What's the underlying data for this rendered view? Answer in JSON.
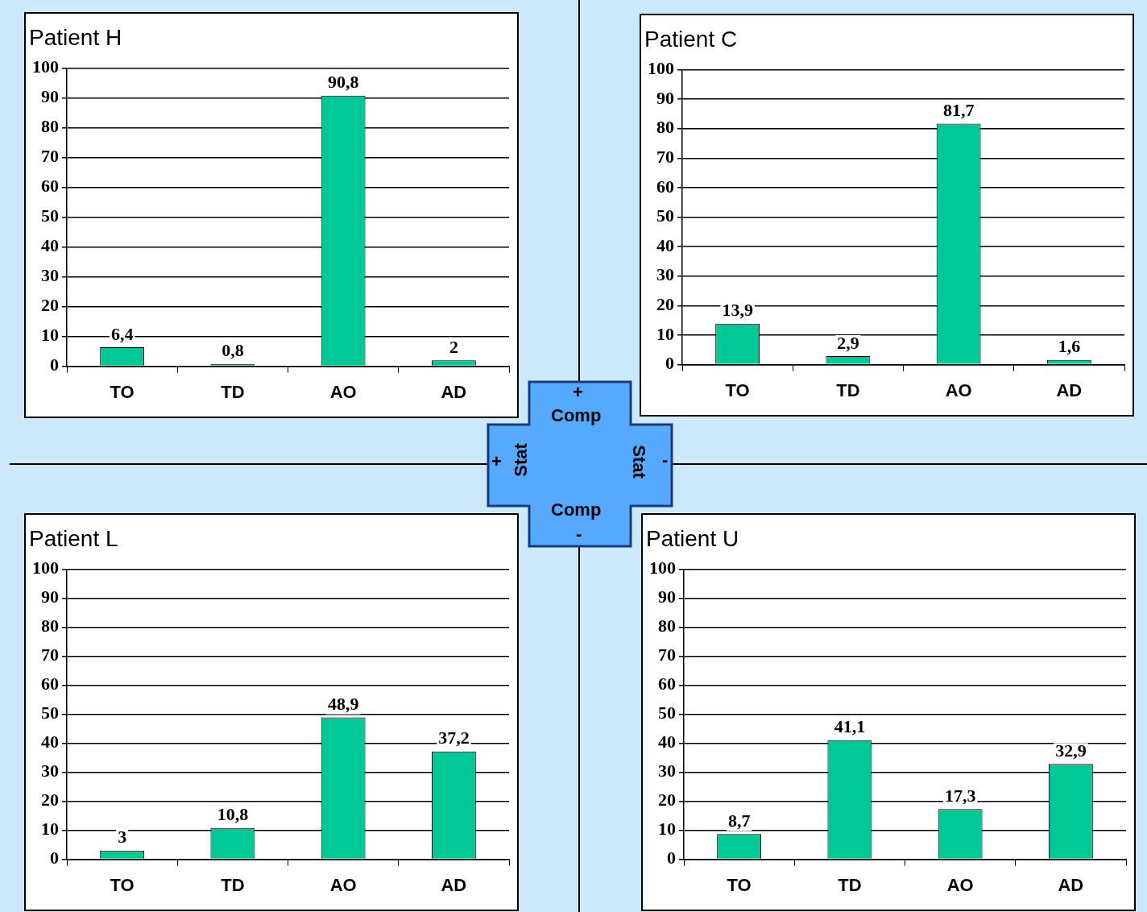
{
  "chart_data": [
    {
      "type": "bar",
      "title": "Patient H",
      "categories": [
        "TO",
        "TD",
        "AO",
        "AD"
      ],
      "values": [
        6.4,
        0.8,
        90.8,
        2
      ],
      "value_labels": [
        "6,4",
        "0,8",
        "90,8",
        "2"
      ],
      "color": "#00c896",
      "ylim": [
        0,
        100
      ],
      "yticks": [
        0,
        10,
        20,
        30,
        40,
        50,
        60,
        70,
        80,
        90,
        100
      ],
      "grid": "y",
      "legend": false
    },
    {
      "type": "bar",
      "title": "Patient C",
      "categories": [
        "TO",
        "TD",
        "AO",
        "AD"
      ],
      "values": [
        13.9,
        2.9,
        81.7,
        1.6
      ],
      "value_labels": [
        "13,9",
        "2,9",
        "81,7",
        "1,6"
      ],
      "color": "#00c896",
      "ylim": [
        0,
        100
      ],
      "yticks": [
        0,
        10,
        20,
        30,
        40,
        50,
        60,
        70,
        80,
        90,
        100
      ],
      "grid": "y",
      "legend": false
    },
    {
      "type": "bar",
      "title": "Patient L",
      "categories": [
        "TO",
        "TD",
        "AO",
        "AD"
      ],
      "values": [
        3,
        10.8,
        48.9,
        37.2
      ],
      "value_labels": [
        "3",
        "10,8",
        "48,9",
        "37,2"
      ],
      "color": "#00c896",
      "ylim": [
        0,
        100
      ],
      "yticks": [
        0,
        10,
        20,
        30,
        40,
        50,
        60,
        70,
        80,
        90,
        100
      ],
      "grid": "y",
      "legend": false
    },
    {
      "type": "bar",
      "title": "Patient U",
      "categories": [
        "TO",
        "TD",
        "AO",
        "AD"
      ],
      "values": [
        8.7,
        41.1,
        17.3,
        32.9
      ],
      "value_labels": [
        "8,7",
        "41,1",
        "17,3",
        "32,9"
      ],
      "color": "#00c896",
      "ylim": [
        0,
        100
      ],
      "yticks": [
        0,
        10,
        20,
        30,
        40,
        50,
        60,
        70,
        80,
        90,
        100
      ],
      "grid": "y",
      "legend": false
    },
    {
      "type": "other",
      "annotations": [
        "+",
        "Comp",
        "+",
        "Stat",
        "-",
        "Stat",
        "Comp",
        "-"
      ]
    }
  ]
}
